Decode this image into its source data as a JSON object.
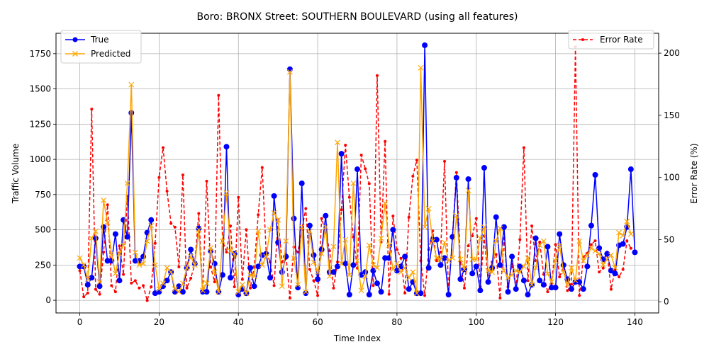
{
  "chart_data": {
    "type": "line",
    "title": "Boro: BRONX Street: SOUTHERN BOULEVARD (using all features)",
    "xlabel": "Time Index",
    "ylabel": "Traffic Volume",
    "y2label": "Error Rate (%)",
    "xlim": [
      -6,
      146
    ],
    "ylim": [
      -90,
      1895
    ],
    "y2lim": [
      -9,
      216
    ],
    "xticks": [
      0,
      20,
      40,
      60,
      80,
      100,
      120,
      140
    ],
    "yticks": [
      0,
      250,
      500,
      750,
      1000,
      1250,
      1500,
      1750
    ],
    "y2ticks": [
      0,
      50,
      100,
      150,
      200
    ],
    "grid": true,
    "legend_left": {
      "placement": "upper-left",
      "entries": [
        "True",
        "Predicted"
      ]
    },
    "legend_right": {
      "placement": "upper-right",
      "entries": [
        "Error Rate"
      ]
    },
    "colors": {
      "true": "#0000ff",
      "predicted": "#ffa500",
      "error": "#ff0000",
      "grid": "#b0b0b0"
    },
    "series": [
      {
        "name": "True",
        "axis": "left",
        "style": "line-circle",
        "values": [
          240,
          240,
          110,
          160,
          440,
          100,
          520,
          280,
          280,
          470,
          140,
          570,
          450,
          1330,
          280,
          280,
          310,
          480,
          570,
          50,
          60,
          100,
          140,
          200,
          60,
          100,
          60,
          230,
          360,
          260,
          510,
          60,
          60,
          350,
          260,
          60,
          180,
          1090,
          160,
          330,
          40,
          80,
          50,
          230,
          100,
          240,
          320,
          330,
          160,
          740,
          410,
          200,
          310,
          1640,
          580,
          90,
          830,
          50,
          530,
          320,
          150,
          360,
          600,
          200,
          200,
          240,
          1040,
          260,
          40,
          250,
          930,
          180,
          200,
          40,
          210,
          120,
          60,
          300,
          300,
          500,
          210,
          240,
          310,
          80,
          130,
          50,
          50,
          1810,
          230,
          430,
          430,
          250,
          300,
          40,
          450,
          870,
          150,
          220,
          860,
          190,
          240,
          70,
          940,
          130,
          230,
          590,
          250,
          520,
          60,
          310,
          80,
          240,
          140,
          40,
          110,
          440,
          140,
          110,
          380,
          90,
          90,
          470,
          250,
          150,
          80,
          130,
          130,
          80,
          240,
          530,
          890,
          370,
          290,
          330,
          210,
          190,
          390,
          400,
          520,
          930,
          340
        ]
      },
      {
        "name": "Predicted",
        "axis": "left",
        "style": "line-x",
        "values": [
          300,
          250,
          150,
          440,
          490,
          130,
          710,
          550,
          330,
          190,
          330,
          390,
          830,
          1530,
          340,
          250,
          260,
          420,
          530,
          250,
          80,
          120,
          230,
          200,
          80,
          60,
          120,
          230,
          310,
          250,
          500,
          70,
          120,
          370,
          200,
          60,
          420,
          760,
          350,
          330,
          60,
          110,
          50,
          180,
          170,
          490,
          250,
          310,
          500,
          620,
          570,
          100,
          420,
          1620,
          300,
          110,
          520,
          60,
          490,
          270,
          200,
          330,
          520,
          170,
          380,
          1120,
          260,
          430,
          180,
          830,
          280,
          70,
          170,
          390,
          250,
          230,
          440,
          690,
          390,
          220,
          260,
          200,
          230,
          160,
          200,
          50,
          1650,
          520,
          650,
          420,
          300,
          290,
          410,
          280,
          300,
          600,
          290,
          220,
          780,
          290,
          290,
          440,
          520,
          210,
          200,
          420,
          510,
          210,
          160,
          180,
          210,
          200,
          240,
          300,
          110,
          230,
          390,
          420,
          190,
          130,
          280,
          390,
          200,
          110,
          230,
          140,
          420,
          280,
          320,
          370,
          350,
          330,
          250,
          290,
          320,
          230,
          480,
          460,
          560,
          470
        ]
      },
      {
        "name": "Error Rate",
        "axis": "right",
        "style": "dashed-dot",
        "values": [
          25,
          4,
          7,
          155,
          10,
          6,
          40,
          78,
          13,
          8,
          45,
          22,
          85,
          15,
          17,
          11,
          13,
          1,
          12,
          47,
          100,
          124,
          89,
          63,
          60,
          28,
          102,
          11,
          19,
          30,
          71,
          9,
          97,
          28,
          16,
          166,
          49,
          40,
          61,
          12,
          84,
          18,
          58,
          11,
          28,
          70,
          108,
          40,
          32,
          13,
          66,
          32,
          38,
          3,
          44,
          40,
          58,
          75,
          26,
          17,
          5,
          67,
          56,
          41,
          11,
          32,
          74,
          126,
          84,
          52,
          27,
          118,
          107,
          95,
          13,
          182,
          48,
          129,
          6,
          69,
          42,
          35,
          7,
          68,
          101,
          114,
          33,
          5,
          42,
          57,
          33,
          40,
          113,
          7,
          53,
          104,
          32,
          11,
          45,
          53,
          67,
          12,
          53,
          17,
          32,
          38,
          3,
          51,
          12,
          30,
          11,
          50,
          124,
          17,
          61,
          33,
          48,
          22,
          8,
          15,
          46,
          20,
          28,
          9,
          14,
          205,
          5,
          36,
          39,
          46,
          49,
          24,
          27,
          40,
          10,
          26,
          20,
          26,
          49,
          43
        ]
      }
    ]
  }
}
